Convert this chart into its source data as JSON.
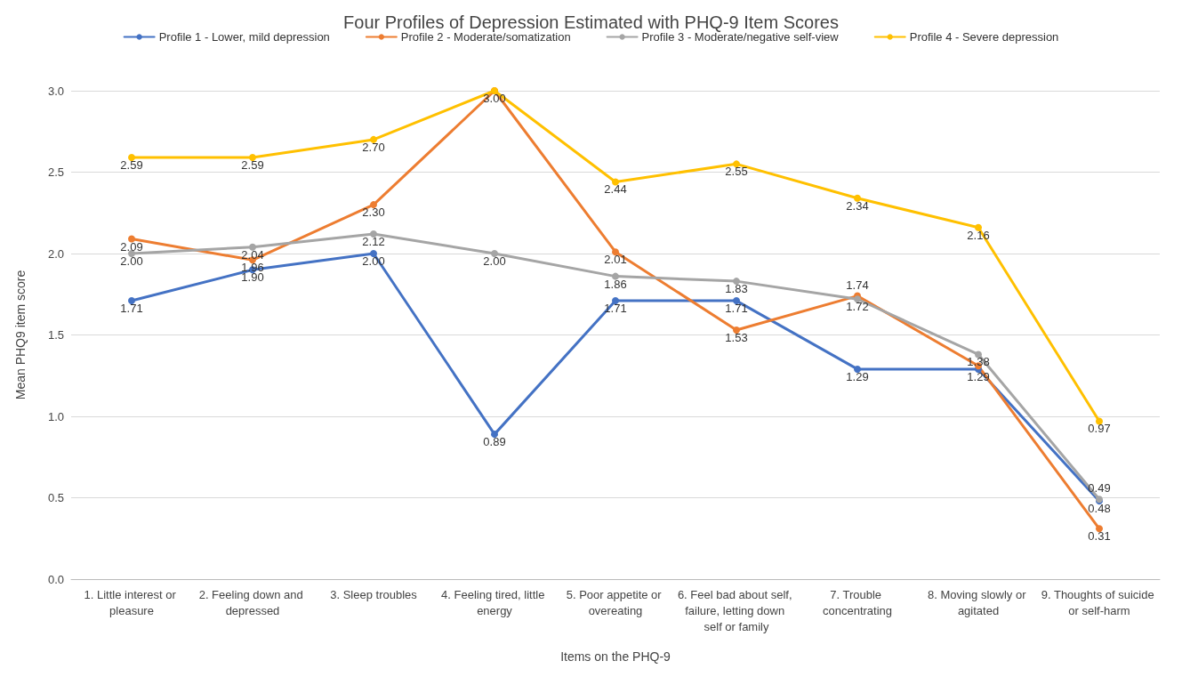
{
  "chart_data": {
    "type": "line",
    "title": "Four Profiles of Depression Estimated with PHQ-9 Item Scores",
    "xlabel": "Items on the PHQ-9",
    "ylabel": "Mean PHQ9 item score",
    "categories": [
      "1. Little interest or pleasure",
      "2. Feeling down and depressed",
      "3. Sleep troubles",
      "4. Feeling tired, little energy",
      "5. Poor appetite or overeating",
      "6. Feel bad about self, failure, letting down self or family",
      "7. Trouble concentrating",
      "8. Moving slowly or agitated",
      "9. Thoughts of suicide or self-harm"
    ],
    "series": [
      {
        "name": "Profile 1 - Lower, mild depression",
        "color": "#4472c4",
        "values": [
          1.71,
          1.9,
          2.0,
          0.89,
          1.71,
          1.71,
          1.29,
          1.29,
          0.48
        ],
        "value_labels": [
          "1.71",
          "1.90",
          "2.00",
          "0.89",
          "1.71",
          "1.71",
          "1.29",
          "1.29",
          "0.48"
        ]
      },
      {
        "name": "Profile 2 - Moderate/somatization",
        "color": "#ed7d31",
        "values": [
          2.09,
          1.96,
          2.3,
          3.0,
          2.01,
          1.53,
          1.74,
          1.31,
          0.31
        ],
        "value_labels": [
          "2.09",
          "1.96",
          "2.30",
          "3.00",
          "2.01",
          "1.53",
          "1.74",
          null,
          "0.31"
        ]
      },
      {
        "name": "Profile 3 - Moderate/negative self-view",
        "color": "#a5a5a5",
        "values": [
          2.0,
          2.04,
          2.12,
          2.0,
          1.86,
          1.83,
          1.72,
          1.38,
          0.49
        ],
        "value_labels": [
          "2.00",
          "2.04",
          "2.12",
          "2.00",
          "1.86",
          "1.83",
          "1.72",
          "1.38",
          "0.49"
        ]
      },
      {
        "name": "Profile 4 - Severe depression",
        "color": "#ffc000",
        "values": [
          2.59,
          2.59,
          2.7,
          3.0,
          2.44,
          2.55,
          2.34,
          2.16,
          0.97
        ],
        "value_labels": [
          "2.59",
          "2.59",
          "2.70",
          null,
          "2.44",
          "2.55",
          "2.34",
          "2.16",
          "0.97"
        ]
      }
    ],
    "ylim": [
      0,
      3
    ],
    "yticks": [
      {
        "value": 0,
        "label": "0.0"
      },
      0.5,
      {
        "value": 1,
        "label": "1.0"
      },
      1.5,
      {
        "value": 2,
        "label": "2.0"
      },
      2.5,
      {
        "value": 3,
        "label": "3.0"
      }
    ],
    "grid": "y",
    "legend": "top",
    "marker": "circle",
    "line_style": "solid"
  }
}
